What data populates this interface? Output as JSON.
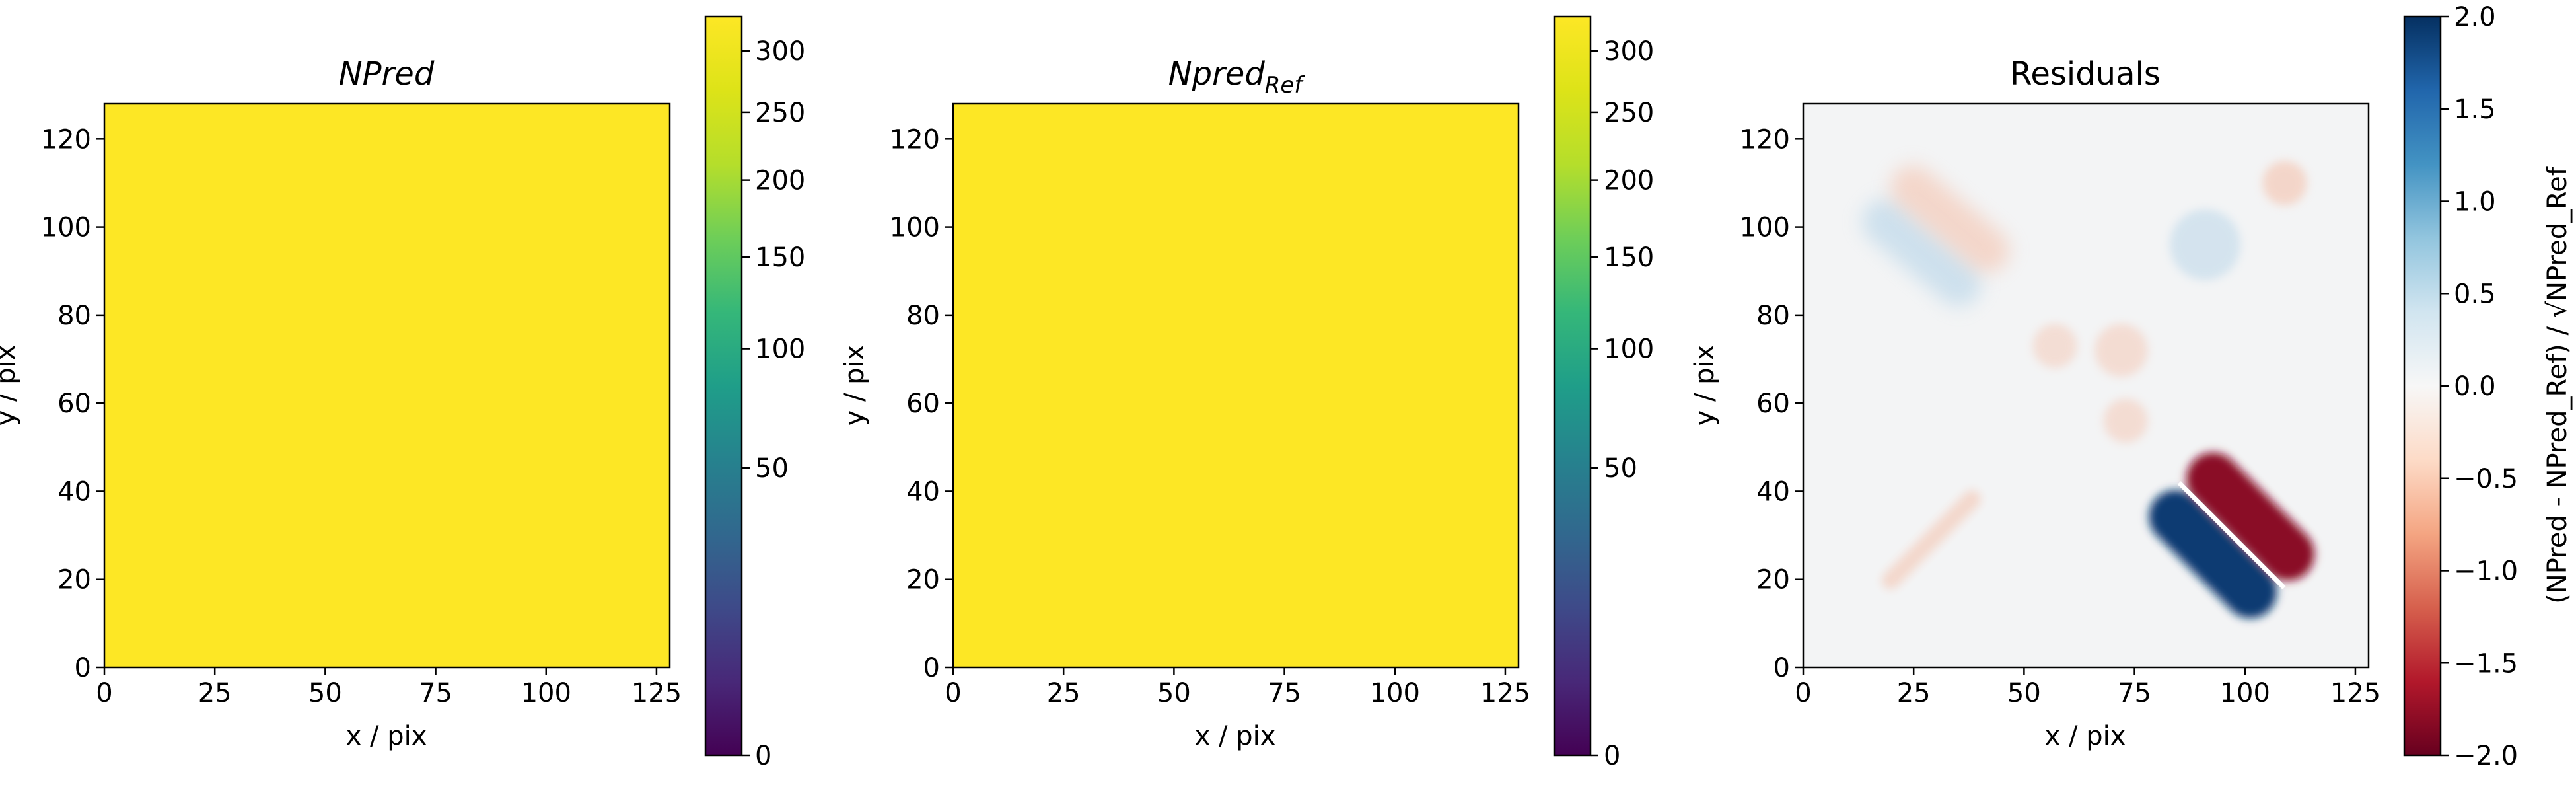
{
  "chart_data": [
    {
      "type": "heatmap",
      "title": "NPred",
      "xlabel": "x / pix",
      "ylabel": "y / pix",
      "xlim": [
        0,
        128
      ],
      "ylim": [
        0,
        128
      ],
      "xticks": [
        0,
        25,
        50,
        75,
        100,
        125
      ],
      "yticks": [
        0,
        20,
        40,
        60,
        80,
        100,
        120
      ],
      "grid": false,
      "colormap": "viridis",
      "fill_color": "#fde725",
      "fill_value": 320,
      "colorbar": {
        "scale": "sqrt",
        "range": [
          0,
          330
        ],
        "ticks": [
          0,
          50,
          100,
          150,
          200,
          250,
          300
        ],
        "label": ""
      }
    },
    {
      "type": "heatmap",
      "title": "Npred",
      "title_subscript": "Ref",
      "xlabel": "x / pix",
      "ylabel": "y / pix",
      "xlim": [
        0,
        128
      ],
      "ylim": [
        0,
        128
      ],
      "xticks": [
        0,
        25,
        50,
        75,
        100,
        125
      ],
      "yticks": [
        0,
        20,
        40,
        60,
        80,
        100,
        120
      ],
      "grid": false,
      "colormap": "viridis",
      "fill_color": "#fde725",
      "fill_value": 320,
      "colorbar": {
        "scale": "sqrt",
        "range": [
          0,
          330
        ],
        "ticks": [
          0,
          50,
          100,
          150,
          200,
          250,
          300
        ],
        "label": ""
      }
    },
    {
      "type": "heatmap",
      "title": "Residuals",
      "xlabel": "x / pix",
      "ylabel": "y / pix",
      "xlim": [
        0,
        128
      ],
      "ylim": [
        0,
        128
      ],
      "xticks": [
        0,
        25,
        50,
        75,
        100,
        125
      ],
      "yticks": [
        0,
        20,
        40,
        60,
        80,
        100,
        120
      ],
      "grid": false,
      "colormap": "RdBu",
      "colorbar": {
        "scale": "linear",
        "range": [
          -2.0,
          2.0
        ],
        "ticks": [
          2.0,
          1.5,
          1.0,
          0.5,
          0.0,
          -0.5,
          -1.0,
          -1.5,
          -2.0
        ],
        "tick_labels": [
          "2.0",
          "1.5",
          "1.0",
          "0.5",
          "0.0",
          "−0.5",
          "−1.0",
          "−1.5",
          "−2.0"
        ],
        "label": "(NPred - NPred_Ref) / √NPred_Ref"
      },
      "features": [
        {
          "kind": "dipole",
          "x": 97,
          "y": 30,
          "angle_deg": -45,
          "length": 36,
          "width": 12,
          "positive_side": "lower-left",
          "value": 2.0
        },
        {
          "kind": "dipole",
          "x": 30,
          "y": 98,
          "angle_deg": -40,
          "length": 32,
          "width": 10,
          "positive_side": "lower-left",
          "value": 0.45
        },
        {
          "kind": "blob",
          "x": 29,
          "y": 29,
          "angle_deg": 45,
          "length": 30,
          "width": 4,
          "value": -0.4
        },
        {
          "kind": "blob",
          "x": 109,
          "y": 110,
          "radius": 5,
          "value": -0.5
        },
        {
          "kind": "blob",
          "x": 91,
          "y": 96,
          "radius": 8,
          "value": 0.2
        },
        {
          "kind": "blob",
          "x": 72,
          "y": 72,
          "radius": 6,
          "value": -0.15
        },
        {
          "kind": "blob",
          "x": 57,
          "y": 73,
          "radius": 5,
          "value": -0.1
        },
        {
          "kind": "blob",
          "x": 73,
          "y": 56,
          "radius": 5,
          "value": -0.15
        }
      ]
    }
  ]
}
